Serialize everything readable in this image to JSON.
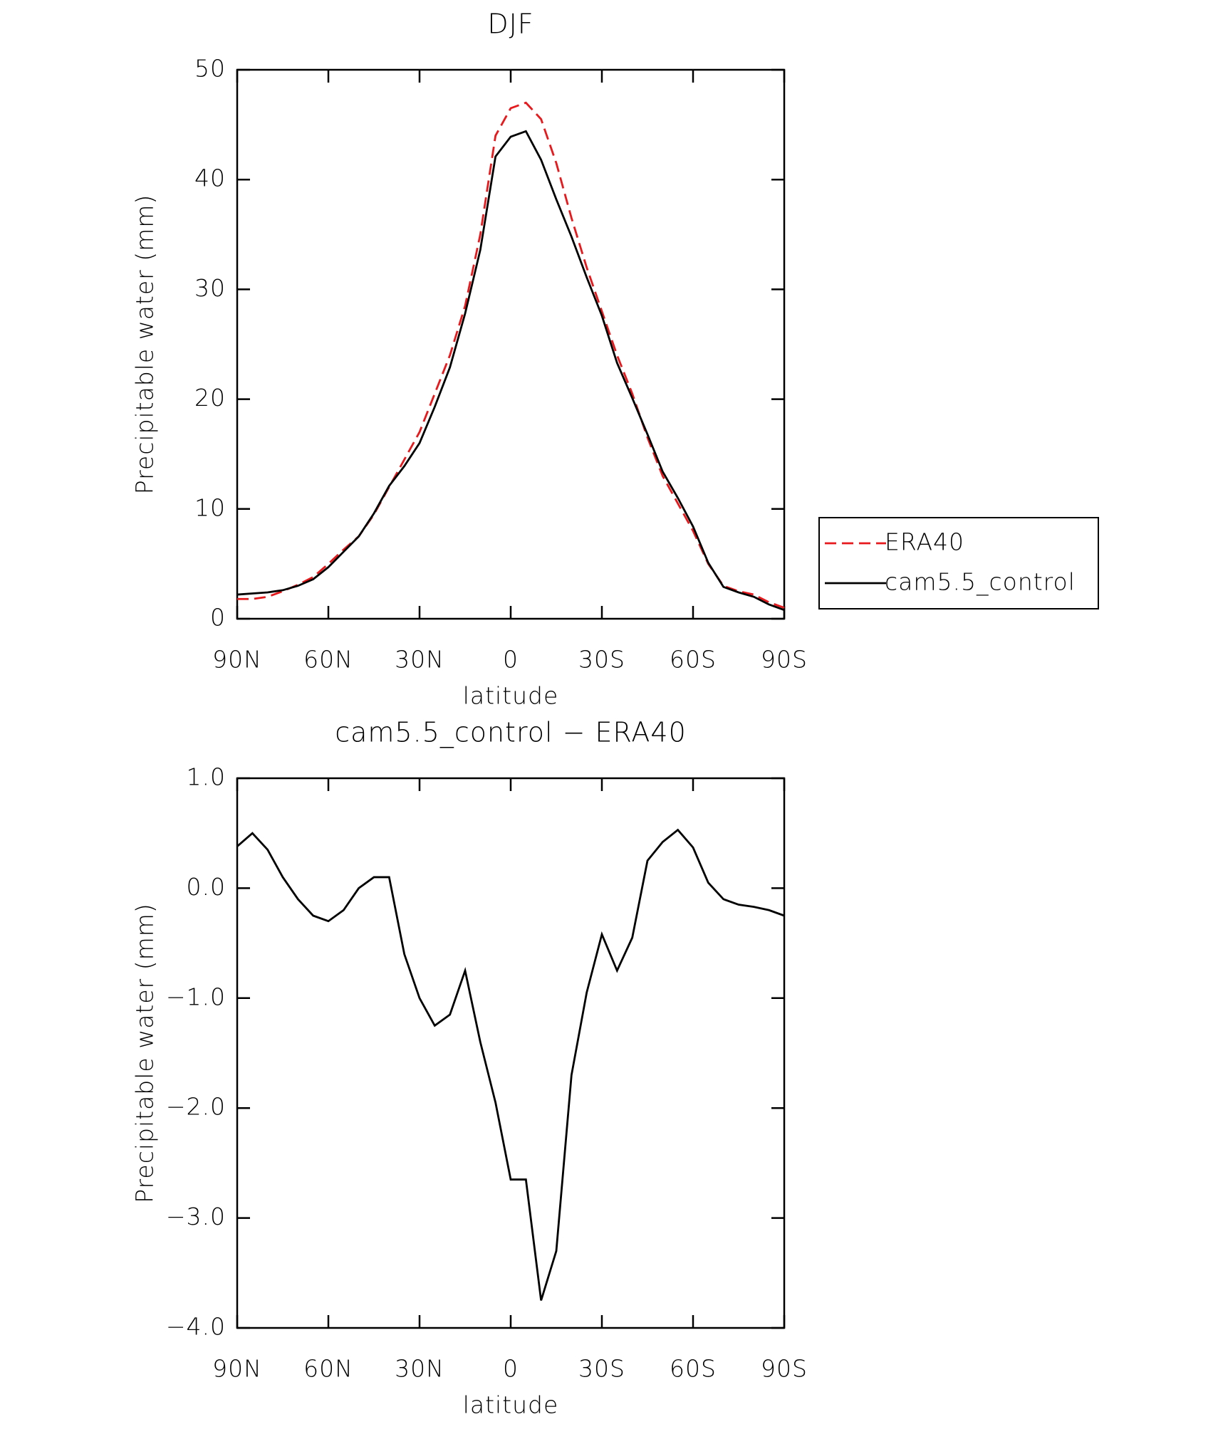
{
  "chart_data": [
    {
      "type": "line",
      "title": "DJF",
      "xlabel": "latitude",
      "ylabel": "Precipitable water (mm)",
      "x": [
        90,
        85,
        80,
        75,
        70,
        65,
        60,
        55,
        50,
        45,
        40,
        35,
        30,
        25,
        20,
        15,
        10,
        5,
        0,
        -5,
        -10,
        -15,
        -20,
        -25,
        -30,
        -35,
        -40,
        -45,
        -50,
        -55,
        -60,
        -65,
        -70,
        -75,
        -80,
        -85,
        -90
      ],
      "xlim": [
        90,
        -90
      ],
      "xticks": [
        {
          "value": 90,
          "label": "90N"
        },
        {
          "value": 60,
          "label": "60N"
        },
        {
          "value": 30,
          "label": "30N"
        },
        0,
        {
          "value": -30,
          "label": "30S"
        },
        {
          "value": -60,
          "label": "60S"
        },
        {
          "value": -90,
          "label": "90S"
        }
      ],
      "ylim": [
        0,
        50
      ],
      "yticks": [
        0,
        10,
        20,
        30,
        40,
        50
      ],
      "legend": "right",
      "series": [
        {
          "name": "ERA40",
          "color": "#e8191c",
          "dash": "dashed",
          "values": [
            1.8,
            1.8,
            2.0,
            2.5,
            3.1,
            3.8,
            5.0,
            6.3,
            7.5,
            9.5,
            12.0,
            14.5,
            17.0,
            20.5,
            24.0,
            28.5,
            35.0,
            44.0,
            46.5,
            47.0,
            45.5,
            41.5,
            36.5,
            32.0,
            28.0,
            24.0,
            20.5,
            16.5,
            13.0,
            10.5,
            8.0,
            5.0,
            3.0,
            2.5,
            2.2,
            1.5,
            1.0
          ]
        },
        {
          "name": "cam5.5_control",
          "color": "#000000",
          "dash": "solid",
          "values": [
            2.2,
            2.3,
            2.4,
            2.6,
            3.0,
            3.6,
            4.7,
            6.1,
            7.5,
            9.6,
            12.1,
            13.9,
            16.0,
            19.3,
            22.9,
            27.8,
            33.6,
            42.1,
            43.9,
            44.4,
            41.8,
            38.2,
            34.8,
            31.1,
            27.6,
            23.3,
            20.1,
            16.8,
            13.4,
            11.0,
            8.4,
            5.1,
            2.9,
            2.4,
            2.0,
            1.3,
            0.8
          ]
        }
      ]
    },
    {
      "type": "line",
      "title": "cam5.5_control − ERA40",
      "xlabel": "latitude",
      "ylabel": "Precipitable water (mm)",
      "x": [
        90,
        85,
        80,
        75,
        70,
        65,
        60,
        55,
        50,
        45,
        40,
        35,
        30,
        25,
        20,
        15,
        10,
        5,
        0,
        -5,
        -10,
        -15,
        -20,
        -25,
        -30,
        -35,
        -40,
        -45,
        -50,
        -55,
        -60,
        -65,
        -70,
        -75,
        -80,
        -85,
        -90
      ],
      "xlim": [
        90,
        -90
      ],
      "xticks": [
        {
          "value": 90,
          "label": "90N"
        },
        {
          "value": 60,
          "label": "60N"
        },
        {
          "value": 30,
          "label": "30N"
        },
        0,
        {
          "value": -30,
          "label": "30S"
        },
        {
          "value": -60,
          "label": "60S"
        },
        {
          "value": -90,
          "label": "90S"
        }
      ],
      "ylim": [
        -4,
        1
      ],
      "yticks": [
        {
          "value": -4,
          "label": "−4.0"
        },
        {
          "value": -3,
          "label": "−3.0"
        },
        {
          "value": -2,
          "label": "−2.0"
        },
        {
          "value": -1,
          "label": "−1.0"
        },
        {
          "value": 0,
          "label": "0.0"
        },
        {
          "value": 1,
          "label": "1.0"
        }
      ],
      "color": "#000000",
      "values": [
        0.38,
        0.5,
        0.35,
        0.1,
        -0.1,
        -0.25,
        -0.3,
        -0.2,
        0.0,
        0.1,
        0.1,
        -0.6,
        -1.0,
        -1.25,
        -1.15,
        -0.75,
        -1.4,
        -1.95,
        -2.65,
        -2.65,
        -3.75,
        -3.3,
        -1.7,
        -0.95,
        -0.42,
        -0.75,
        -0.45,
        0.25,
        0.42,
        0.53,
        0.37,
        0.05,
        -0.1,
        -0.15,
        -0.17,
        -0.2,
        -0.25
      ]
    }
  ]
}
